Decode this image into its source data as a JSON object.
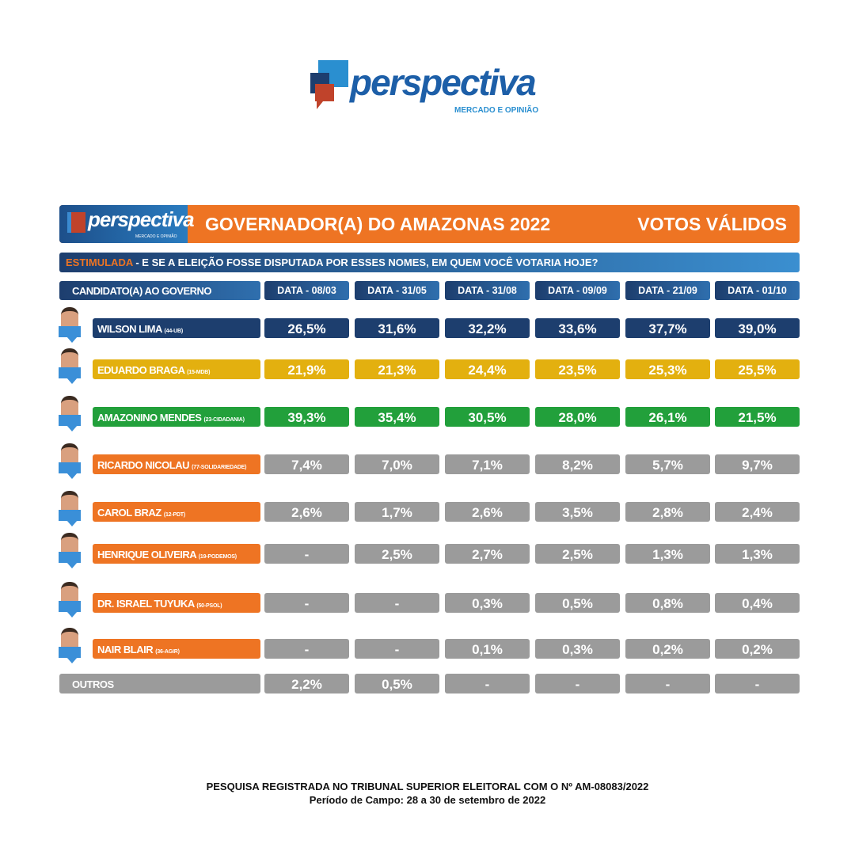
{
  "brand": {
    "name": "perspectiva",
    "tagline": "MERCADO E OPINIÃO"
  },
  "header": {
    "title": "GOVERNADOR(A) DO AMAZONAS 2022",
    "right": "VOTOS VÁLIDOS"
  },
  "question": {
    "tag": "ESTIMULADA",
    "text": " - E SE A ELEIÇÃO FOSSE DISPUTADA POR ESSES NOMES, EM QUEM VOCÊ VOTARIA HOJE?"
  },
  "colors": {
    "navy": "#1d3e6e",
    "yellow": "#e3b00f",
    "green": "#22a03b",
    "orange": "#ee7423",
    "gray": "#9b9b9b"
  },
  "chart_data": {
    "type": "table",
    "title": "GOVERNADOR(A) DO AMAZONAS 2022",
    "columns": [
      "CANDIDATO(A) AO GOVERNO",
      "DATA - 08/03",
      "DATA - 31/05",
      "DATA - 31/08",
      "DATA - 09/09",
      "DATA - 21/09",
      "DATA - 01/10"
    ],
    "rows": [
      {
        "name": "WILSON LIMA",
        "party": "(44-UB)",
        "color": "#1d3e6e",
        "values": [
          "26,5%",
          "31,6%",
          "32,2%",
          "33,6%",
          "37,7%",
          "39,0%"
        ]
      },
      {
        "name": "EDUARDO BRAGA",
        "party": "(15-MDB)",
        "color": "#e3b00f",
        "values": [
          "21,9%",
          "21,3%",
          "24,4%",
          "23,5%",
          "25,3%",
          "25,5%"
        ]
      },
      {
        "name": "AMAZONINO MENDES",
        "party": "(23-CIDADANIA)",
        "color": "#22a03b",
        "values": [
          "39,3%",
          "35,4%",
          "30,5%",
          "28,0%",
          "26,1%",
          "21,5%"
        ]
      },
      {
        "name": "RICARDO NICOLAU",
        "party": "(77-SOLIDARIEDADE)",
        "color": "#ee7423",
        "values": [
          "7,4%",
          "7,0%",
          "7,1%",
          "8,2%",
          "5,7%",
          "9,7%"
        ]
      },
      {
        "name": "CAROL BRAZ",
        "party": "(12-PDT)",
        "color": "#ee7423",
        "values": [
          "2,6%",
          "1,7%",
          "2,6%",
          "3,5%",
          "2,8%",
          "2,4%"
        ]
      },
      {
        "name": "HENRIQUE OLIVEIRA",
        "party": "(19-PODEMOS)",
        "color": "#ee7423",
        "values": [
          "-",
          "2,5%",
          "2,7%",
          "2,5%",
          "1,3%",
          "1,3%"
        ]
      },
      {
        "name": "DR. ISRAEL TUYUKA",
        "party": "(50-PSOL)",
        "color": "#ee7423",
        "values": [
          "-",
          "-",
          "0,3%",
          "0,5%",
          "0,8%",
          "0,4%"
        ]
      },
      {
        "name": "NAIR BLAIR",
        "party": "(36-AGIR)",
        "color": "#ee7423",
        "values": [
          "-",
          "-",
          "0,1%",
          "0,3%",
          "0,2%",
          "0,2%"
        ]
      },
      {
        "name": "OUTROS",
        "party": "",
        "color": "#9b9b9b",
        "values": [
          "2,2%",
          "0,5%",
          "-",
          "-",
          "-",
          "-"
        ]
      }
    ]
  },
  "footer": {
    "line1": "PESQUISA REGISTRADA NO TRIBUNAL SUPERIOR ELEITORAL COM O Nº AM-08083/2022",
    "line2": "Período de Campo: 28 a 30 de setembro de 2022"
  }
}
